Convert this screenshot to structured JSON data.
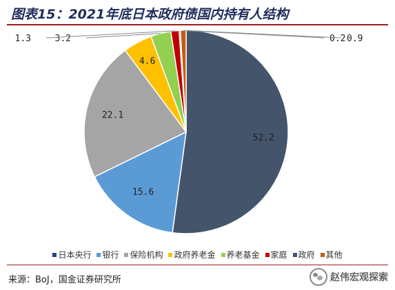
{
  "title": "图表15：2021年底日本政府债国内持有人结构",
  "chart_data": {
    "type": "pie",
    "title": "图表15：2021年底日本政府债国内持有人结构",
    "slices": [
      {
        "name": "政府",
        "value": 52.2,
        "label": "52.2",
        "color": "#44546a"
      },
      {
        "name": "银行",
        "value": 15.6,
        "label": "15.6",
        "color": "#5b9bd5"
      },
      {
        "name": "保险机构",
        "value": 22.1,
        "label": "22.1",
        "color": "#a5a5a5"
      },
      {
        "name": "政府养老金",
        "value": 4.6,
        "label": "4.6",
        "color": "#ffc000"
      },
      {
        "name": "养老基金",
        "value": 3.2,
        "label": "3.2",
        "color": "#92d050"
      },
      {
        "name": "家庭",
        "value": 1.3,
        "label": "1.3",
        "color": "#c00000"
      },
      {
        "name": "日本央行",
        "value": 0.2,
        "label": "0.2",
        "color": "#264478"
      },
      {
        "name": "其他",
        "value": 0.9,
        "label": "0.9",
        "color": "#c55a11"
      }
    ],
    "legend": [
      {
        "name": "日本央行",
        "color": "#264478"
      },
      {
        "name": "银行",
        "color": "#5b9bd5"
      },
      {
        "name": "保险机构",
        "color": "#a5a5a5"
      },
      {
        "name": "政府养老金",
        "color": "#ffc000"
      },
      {
        "name": "养老基金",
        "color": "#92d050"
      },
      {
        "name": "家庭",
        "color": "#c00000"
      },
      {
        "name": "政府",
        "color": "#44546a"
      },
      {
        "name": "其他",
        "color": "#c55a11"
      }
    ],
    "legend_position": "bottom"
  },
  "source": "来源：BoJ，国金证券研究所",
  "watermark": "赵伟宏观探索"
}
